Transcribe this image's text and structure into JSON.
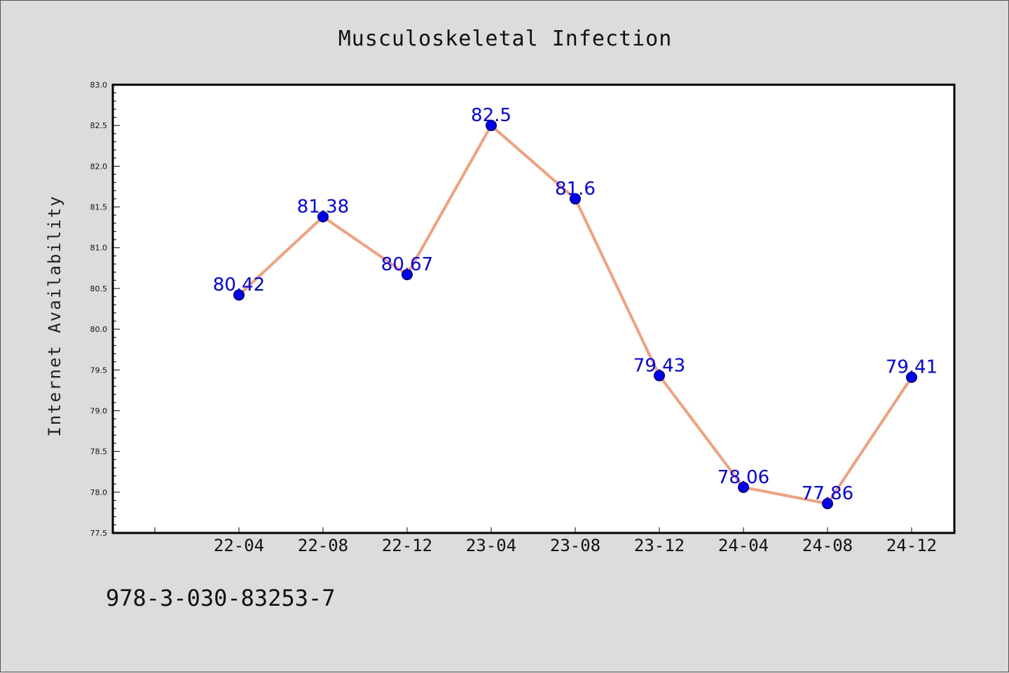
{
  "chart_data": {
    "type": "line",
    "title": "Musculoskeletal Infection",
    "xlabel": "",
    "ylabel": "Internet Availability",
    "categories": [
      "22-04",
      "22-08",
      "22-12",
      "23-04",
      "23-08",
      "23-12",
      "24-04",
      "24-08",
      "24-12"
    ],
    "series": [
      {
        "values": [
          80.42,
          81.38,
          80.67,
          82.5,
          81.6,
          79.43,
          78.06,
          77.86,
          79.41
        ],
        "data_labels": [
          "80.42",
          "81.38",
          "80.67",
          "82.5",
          "81.6",
          "79.43",
          "78.06",
          "77.86",
          "79.41"
        ],
        "line_color": "#f4a07a",
        "marker_color": "#0000ee"
      }
    ],
    "ylim": [
      77.5,
      83.0
    ],
    "yticks": [
      "77.5",
      "78.0",
      "78.5",
      "79.0",
      "79.5",
      "80.0",
      "80.5",
      "81.0",
      "81.5",
      "82.0",
      "82.5",
      "83.0"
    ],
    "grid": false,
    "legend": "none"
  },
  "footer": {
    "isbn": "978-3-030-83253-7"
  },
  "colors": {
    "background": "#dcdcdc",
    "plot_background": "#ffffff",
    "label_color": "#0000ff"
  }
}
